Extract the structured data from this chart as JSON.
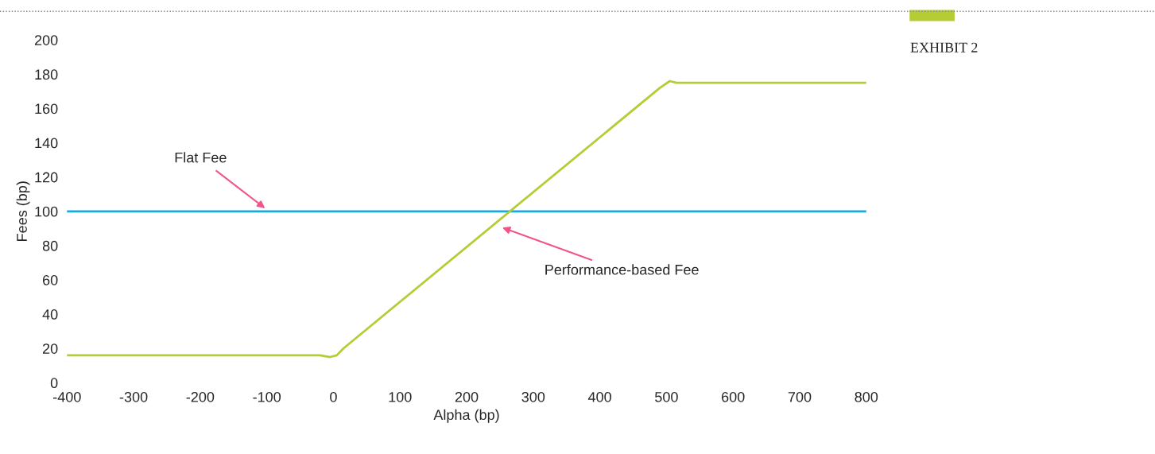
{
  "chart_data": {
    "type": "line",
    "xlabel": "Alpha (bp)",
    "ylabel": "Fees (bp)",
    "xlim": [
      -400,
      800
    ],
    "xticks": [
      -400,
      -300,
      -200,
      -100,
      0,
      100,
      200,
      300,
      400,
      500,
      600,
      700,
      800
    ],
    "ylim": [
      0,
      200
    ],
    "yticks": [
      0,
      20,
      40,
      60,
      80,
      100,
      120,
      140,
      160,
      180,
      200
    ],
    "grid": false,
    "legend": false,
    "marker": "none",
    "line_style": "solid",
    "series": [
      {
        "color": "#1ba9e1",
        "x": [
          -400,
          800
        ],
        "values": [
          100,
          100
        ]
      },
      {
        "color": "#b5cc34",
        "x": [
          -400,
          -20,
          -5,
          5,
          15,
          490,
          505,
          515,
          800
        ],
        "values": [
          16,
          16,
          15,
          16,
          20,
          172,
          176,
          175,
          175
        ]
      }
    ],
    "annotations": [
      "Flat Fee",
      "Performance-based Fee",
      "EXHIBIT 2"
    ]
  }
}
